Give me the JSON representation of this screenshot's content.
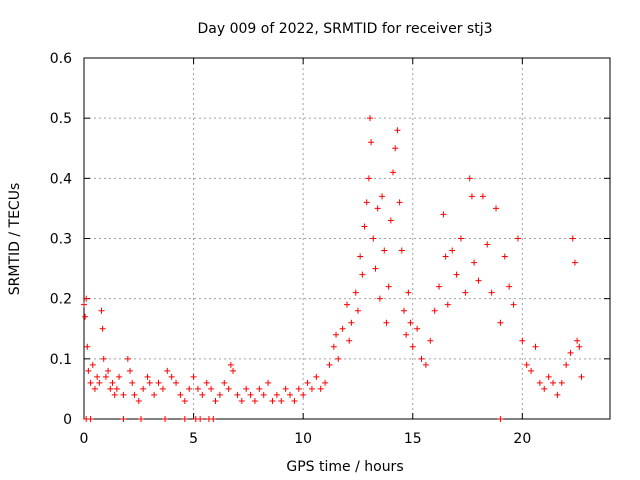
{
  "chart_data": {
    "type": "scatter",
    "title": "Day 009 of 2022, SRMTID for receiver stj3",
    "xlabel": "GPS time / hours",
    "ylabel": "SRMTID / TECUs",
    "xlim": [
      0,
      24
    ],
    "ylim": [
      0,
      0.6
    ],
    "xticks": [
      0,
      5,
      10,
      15,
      20
    ],
    "yticks": [
      0,
      0.1,
      0.2,
      0.3,
      0.4,
      0.5,
      0.6
    ],
    "xtick_labels": [
      "0",
      "5",
      "10",
      "15",
      "20"
    ],
    "ytick_labels": [
      "0",
      "0.1",
      "0.2",
      "0.3",
      "0.4",
      "0.5",
      "0.6"
    ],
    "grid": true,
    "marker": "+",
    "color": "#ff0000",
    "series": [
      {
        "name": "stj3",
        "points": [
          [
            0.0,
            0.19
          ],
          [
            0.05,
            0.17
          ],
          [
            0.1,
            0.2
          ],
          [
            0.15,
            0.12
          ],
          [
            0.2,
            0.08
          ],
          [
            0.3,
            0.06
          ],
          [
            0.4,
            0.09
          ],
          [
            0.5,
            0.05
          ],
          [
            0.6,
            0.07
          ],
          [
            0.7,
            0.06
          ],
          [
            0.8,
            0.18
          ],
          [
            0.85,
            0.15
          ],
          [
            0.9,
            0.1
          ],
          [
            1.0,
            0.07
          ],
          [
            1.1,
            0.08
          ],
          [
            1.2,
            0.05
          ],
          [
            1.3,
            0.06
          ],
          [
            1.4,
            0.04
          ],
          [
            1.5,
            0.05
          ],
          [
            1.6,
            0.07
          ],
          [
            1.8,
            0.04
          ],
          [
            2.0,
            0.1
          ],
          [
            2.1,
            0.08
          ],
          [
            2.2,
            0.06
          ],
          [
            2.3,
            0.04
          ],
          [
            2.5,
            0.03
          ],
          [
            2.7,
            0.05
          ],
          [
            2.9,
            0.07
          ],
          [
            3.0,
            0.06
          ],
          [
            3.2,
            0.04
          ],
          [
            3.4,
            0.06
          ],
          [
            3.6,
            0.05
          ],
          [
            3.8,
            0.08
          ],
          [
            4.0,
            0.07
          ],
          [
            4.2,
            0.06
          ],
          [
            4.4,
            0.04
          ],
          [
            4.6,
            0.03
          ],
          [
            4.8,
            0.05
          ],
          [
            5.0,
            0.07
          ],
          [
            5.2,
            0.05
          ],
          [
            5.4,
            0.04
          ],
          [
            5.6,
            0.06
          ],
          [
            5.8,
            0.05
          ],
          [
            6.0,
            0.03
          ],
          [
            6.2,
            0.04
          ],
          [
            6.4,
            0.06
          ],
          [
            6.6,
            0.05
          ],
          [
            6.7,
            0.09
          ],
          [
            6.8,
            0.08
          ],
          [
            7.0,
            0.04
          ],
          [
            7.2,
            0.03
          ],
          [
            7.4,
            0.05
          ],
          [
            7.6,
            0.04
          ],
          [
            7.8,
            0.03
          ],
          [
            8.0,
            0.05
          ],
          [
            8.2,
            0.04
          ],
          [
            8.4,
            0.06
          ],
          [
            8.6,
            0.03
          ],
          [
            8.8,
            0.04
          ],
          [
            9.0,
            0.03
          ],
          [
            9.2,
            0.05
          ],
          [
            9.4,
            0.04
          ],
          [
            9.6,
            0.03
          ],
          [
            9.8,
            0.05
          ],
          [
            10.0,
            0.04
          ],
          [
            10.2,
            0.06
          ],
          [
            10.4,
            0.05
          ],
          [
            10.6,
            0.07
          ],
          [
            10.8,
            0.05
          ],
          [
            11.0,
            0.06
          ],
          [
            11.2,
            0.09
          ],
          [
            11.4,
            0.12
          ],
          [
            11.5,
            0.14
          ],
          [
            11.6,
            0.1
          ],
          [
            11.8,
            0.15
          ],
          [
            12.0,
            0.19
          ],
          [
            12.1,
            0.13
          ],
          [
            12.2,
            0.16
          ],
          [
            12.4,
            0.21
          ],
          [
            12.5,
            0.18
          ],
          [
            12.6,
            0.27
          ],
          [
            12.7,
            0.24
          ],
          [
            12.8,
            0.32
          ],
          [
            12.9,
            0.36
          ],
          [
            13.0,
            0.4
          ],
          [
            13.05,
            0.5
          ],
          [
            13.1,
            0.46
          ],
          [
            13.2,
            0.3
          ],
          [
            13.3,
            0.25
          ],
          [
            13.4,
            0.35
          ],
          [
            13.5,
            0.2
          ],
          [
            13.6,
            0.37
          ],
          [
            13.7,
            0.28
          ],
          [
            13.8,
            0.16
          ],
          [
            13.9,
            0.22
          ],
          [
            14.0,
            0.33
          ],
          [
            14.1,
            0.41
          ],
          [
            14.2,
            0.45
          ],
          [
            14.3,
            0.48
          ],
          [
            14.4,
            0.36
          ],
          [
            14.5,
            0.28
          ],
          [
            14.6,
            0.18
          ],
          [
            14.7,
            0.14
          ],
          [
            14.8,
            0.21
          ],
          [
            14.9,
            0.16
          ],
          [
            15.0,
            0.12
          ],
          [
            15.2,
            0.15
          ],
          [
            15.4,
            0.1
          ],
          [
            15.6,
            0.09
          ],
          [
            15.8,
            0.13
          ],
          [
            16.0,
            0.18
          ],
          [
            16.2,
            0.22
          ],
          [
            16.4,
            0.34
          ],
          [
            16.5,
            0.27
          ],
          [
            16.6,
            0.19
          ],
          [
            16.8,
            0.28
          ],
          [
            17.0,
            0.24
          ],
          [
            17.2,
            0.3
          ],
          [
            17.4,
            0.21
          ],
          [
            17.6,
            0.4
          ],
          [
            17.7,
            0.37
          ],
          [
            17.8,
            0.26
          ],
          [
            18.0,
            0.23
          ],
          [
            18.2,
            0.37
          ],
          [
            18.4,
            0.29
          ],
          [
            18.6,
            0.21
          ],
          [
            18.8,
            0.35
          ],
          [
            19.0,
            0.16
          ],
          [
            19.2,
            0.27
          ],
          [
            19.4,
            0.22
          ],
          [
            19.6,
            0.19
          ],
          [
            19.8,
            0.3
          ],
          [
            20.0,
            0.13
          ],
          [
            20.2,
            0.09
          ],
          [
            20.4,
            0.08
          ],
          [
            20.6,
            0.12
          ],
          [
            20.8,
            0.06
          ],
          [
            21.0,
            0.05
          ],
          [
            21.2,
            0.07
          ],
          [
            21.4,
            0.06
          ],
          [
            21.6,
            0.04
          ],
          [
            21.8,
            0.06
          ],
          [
            22.0,
            0.09
          ],
          [
            22.2,
            0.11
          ],
          [
            22.3,
            0.3
          ],
          [
            22.4,
            0.26
          ],
          [
            22.5,
            0.13
          ],
          [
            22.6,
            0.12
          ],
          [
            22.7,
            0.07
          ]
        ]
      }
    ],
    "zero_markers_x": [
      0.1,
      0.3,
      1.8,
      2.6,
      3.7,
      4.6,
      5.1,
      5.3,
      5.7,
      5.9,
      19.0
    ]
  }
}
